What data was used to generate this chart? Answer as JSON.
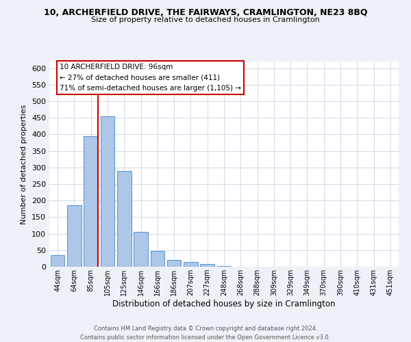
{
  "title": "10, ARCHERFIELD DRIVE, THE FAIRWAYS, CRAMLINGTON, NE23 8BQ",
  "subtitle": "Size of property relative to detached houses in Cramlington",
  "xlabel": "Distribution of detached houses by size in Cramlington",
  "ylabel": "Number of detached properties",
  "bar_labels": [
    "44sqm",
    "64sqm",
    "85sqm",
    "105sqm",
    "125sqm",
    "146sqm",
    "166sqm",
    "186sqm",
    "207sqm",
    "227sqm",
    "248sqm",
    "268sqm",
    "288sqm",
    "309sqm",
    "329sqm",
    "349sqm",
    "370sqm",
    "390sqm",
    "410sqm",
    "431sqm",
    "451sqm"
  ],
  "bar_values": [
    35,
    185,
    395,
    455,
    290,
    105,
    48,
    20,
    15,
    8,
    2,
    1,
    0,
    0,
    0,
    0,
    0,
    0,
    0,
    0,
    1
  ],
  "bar_color": "#aec6e8",
  "bar_edge_color": "#5b9bd5",
  "vline_color": "#cc0000",
  "annotation_line1": "10 ARCHERFIELD DRIVE: 96sqm",
  "annotation_line2": "← 27% of detached houses are smaller (411)",
  "annotation_line3": "71% of semi-detached houses are larger (1,105) →",
  "ylim": [
    0,
    620
  ],
  "yticks": [
    0,
    50,
    100,
    150,
    200,
    250,
    300,
    350,
    400,
    450,
    500,
    550,
    600
  ],
  "footer_text": "Contains HM Land Registry data © Crown copyright and database right 2024.\nContains public sector information licensed under the Open Government Licence v3.0.",
  "bg_color": "#eef2f8",
  "plot_bg_color": "#ffffff",
  "grid_color": "#d0d8e8"
}
